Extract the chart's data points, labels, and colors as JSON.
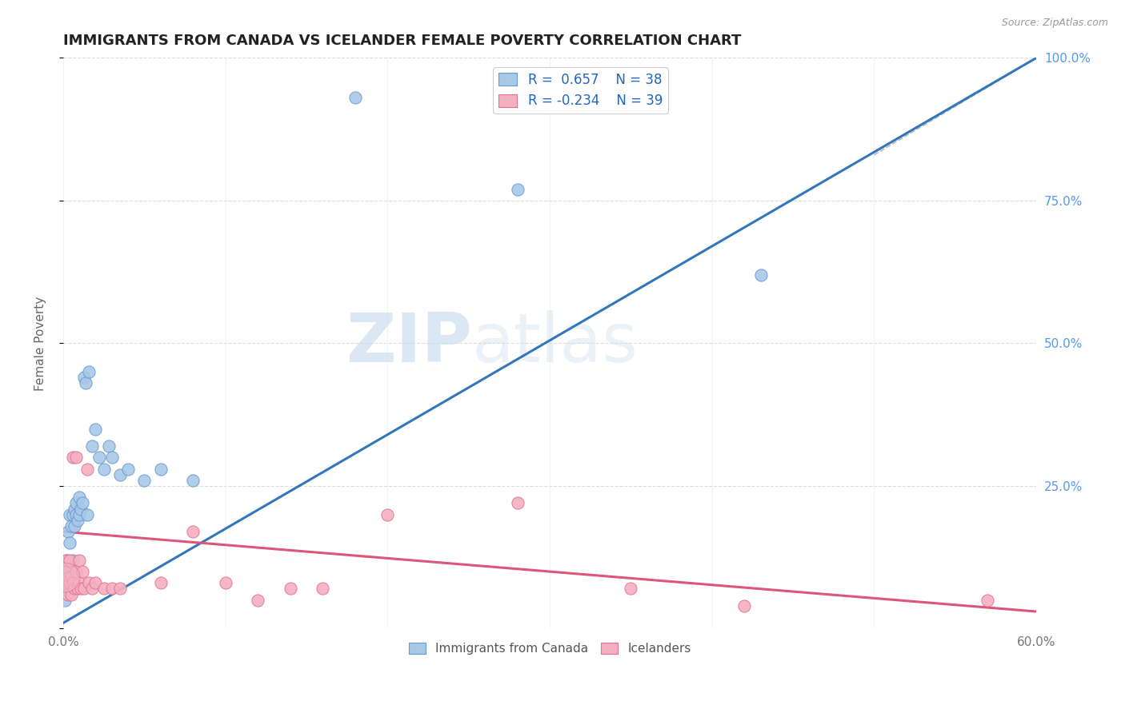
{
  "title": "IMMIGRANTS FROM CANADA VS ICELANDER FEMALE POVERTY CORRELATION CHART",
  "source": "Source: ZipAtlas.com",
  "ylabel": "Female Poverty",
  "xlim": [
    0.0,
    0.6
  ],
  "ylim": [
    0.0,
    1.0
  ],
  "xticks": [
    0.0,
    0.1,
    0.2,
    0.3,
    0.4,
    0.5,
    0.6
  ],
  "xticklabels": [
    "0.0%",
    "",
    "",
    "",
    "",
    "",
    "60.0%"
  ],
  "yticks": [
    0.0,
    0.25,
    0.5,
    0.75,
    1.0
  ],
  "yticklabels_right": [
    "",
    "25.0%",
    "50.0%",
    "75.0%",
    "100.0%"
  ],
  "watermark_zip": "ZIP",
  "watermark_atlas": "atlas",
  "legend_blue_r": "R =  0.657",
  "legend_blue_n": "N = 38",
  "legend_pink_r": "R = -0.234",
  "legend_pink_n": "N = 39",
  "label_blue": "Immigrants from Canada",
  "label_pink": "Icelanders",
  "blue_color": "#A8C8E8",
  "pink_color": "#F4B0C0",
  "blue_edge_color": "#6699CC",
  "pink_edge_color": "#E07090",
  "blue_line_color": "#3377BB",
  "pink_line_color": "#DD5577",
  "dashed_line_color": "#BBBBBB",
  "blue_scatter_x": [
    0.001,
    0.002,
    0.002,
    0.003,
    0.003,
    0.004,
    0.004,
    0.005,
    0.005,
    0.006,
    0.006,
    0.007,
    0.007,
    0.008,
    0.008,
    0.009,
    0.01,
    0.01,
    0.011,
    0.012,
    0.013,
    0.014,
    0.015,
    0.016,
    0.018,
    0.02,
    0.022,
    0.025,
    0.028,
    0.03,
    0.035,
    0.04,
    0.05,
    0.06,
    0.08,
    0.18,
    0.28,
    0.43
  ],
  "blue_scatter_y": [
    0.05,
    0.08,
    0.12,
    0.1,
    0.17,
    0.15,
    0.2,
    0.1,
    0.18,
    0.12,
    0.2,
    0.18,
    0.21,
    0.2,
    0.22,
    0.19,
    0.2,
    0.23,
    0.21,
    0.22,
    0.44,
    0.43,
    0.2,
    0.45,
    0.32,
    0.35,
    0.3,
    0.28,
    0.32,
    0.3,
    0.27,
    0.28,
    0.26,
    0.28,
    0.26,
    0.93,
    0.77,
    0.62
  ],
  "pink_scatter_x": [
    0.001,
    0.001,
    0.002,
    0.002,
    0.003,
    0.003,
    0.004,
    0.004,
    0.005,
    0.005,
    0.006,
    0.006,
    0.007,
    0.008,
    0.008,
    0.009,
    0.01,
    0.01,
    0.011,
    0.012,
    0.013,
    0.015,
    0.016,
    0.018,
    0.02,
    0.025,
    0.03,
    0.035,
    0.06,
    0.08,
    0.1,
    0.12,
    0.14,
    0.16,
    0.2,
    0.28,
    0.35,
    0.42,
    0.57
  ],
  "pink_scatter_y": [
    0.07,
    0.1,
    0.08,
    0.12,
    0.06,
    0.09,
    0.08,
    0.12,
    0.06,
    0.09,
    0.3,
    0.08,
    0.07,
    0.3,
    0.1,
    0.07,
    0.08,
    0.12,
    0.07,
    0.1,
    0.07,
    0.28,
    0.08,
    0.07,
    0.08,
    0.07,
    0.07,
    0.07,
    0.08,
    0.17,
    0.08,
    0.05,
    0.07,
    0.07,
    0.2,
    0.22,
    0.07,
    0.04,
    0.05
  ],
  "blue_line_x": [
    0.0,
    0.6
  ],
  "blue_line_y": [
    0.01,
    1.0
  ],
  "pink_line_x": [
    0.0,
    0.6
  ],
  "pink_line_y": [
    0.17,
    0.03
  ],
  "dashed_line_x": [
    0.5,
    0.6
  ],
  "dashed_line_y": [
    0.83,
    1.0
  ],
  "background_color": "#FFFFFF",
  "grid_color": "#DDDDDD"
}
